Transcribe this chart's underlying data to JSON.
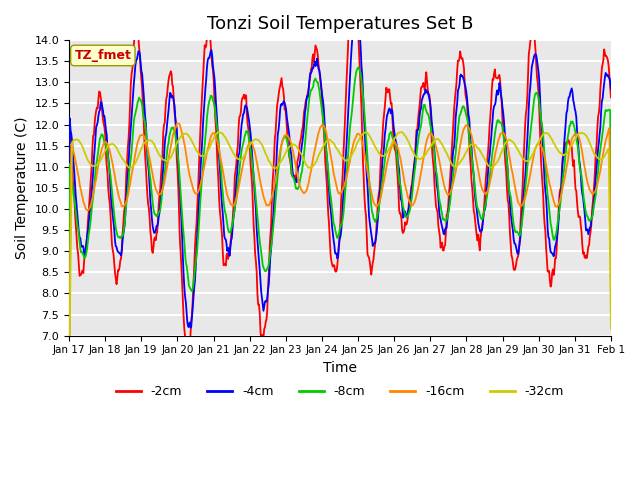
{
  "title": "Tonzi Soil Temperatures Set B",
  "xlabel": "Time",
  "ylabel": "Soil Temperature (C)",
  "ylim": [
    7.0,
    14.0
  ],
  "yticks": [
    7.0,
    7.5,
    8.0,
    8.5,
    9.0,
    9.5,
    10.0,
    10.5,
    11.0,
    11.5,
    12.0,
    12.5,
    13.0,
    13.5,
    14.0
  ],
  "xtick_labels": [
    "Jan 17",
    "Jan 18",
    "Jan 19",
    "Jan 20",
    "Jan 21",
    "Jan 22",
    "Jan 23",
    "Jan 24",
    "Jan 25",
    "Jan 26",
    "Jan 27",
    "Jan 28",
    "Jan 29",
    "Jan 30",
    "Jan 31",
    "Feb 1"
  ],
  "colors": {
    "-2cm": "#ff0000",
    "-4cm": "#0000ff",
    "-8cm": "#00cc00",
    "-16cm": "#ff8800",
    "-32cm": "#cccc00"
  },
  "legend_label": "TZ_fmet",
  "plot_bg_color": "#e8e8e8",
  "grid_color": "#ffffff",
  "title_fontsize": 13,
  "axis_fontsize": 10
}
